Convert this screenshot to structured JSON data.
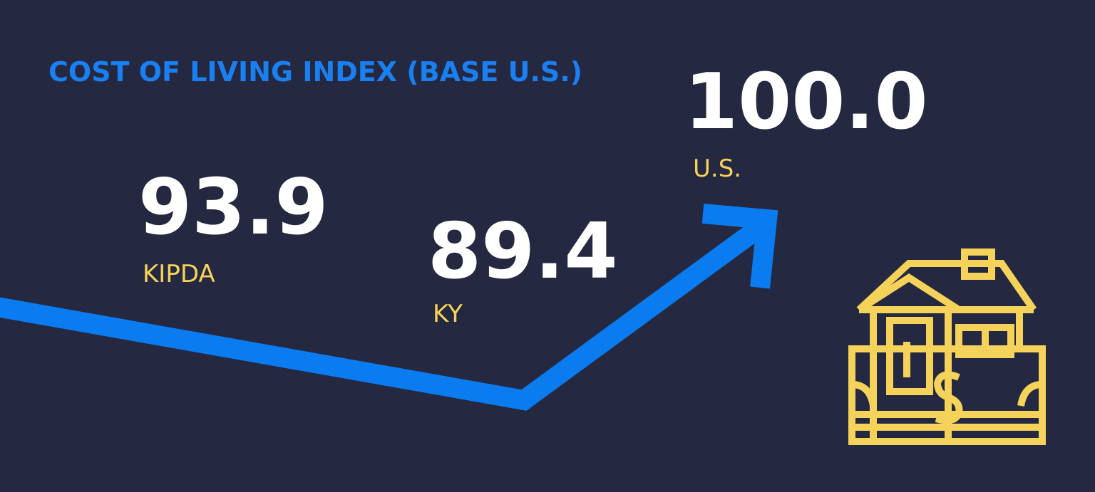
{
  "title": "COST OF LIVING INDEX (BASE U.S.)",
  "items": [
    {
      "value": "93.9",
      "label": "KIPDA"
    },
    {
      "value": "89.4",
      "label": "KY"
    },
    {
      "value": "100.0",
      "label": "U.S."
    }
  ]
}
